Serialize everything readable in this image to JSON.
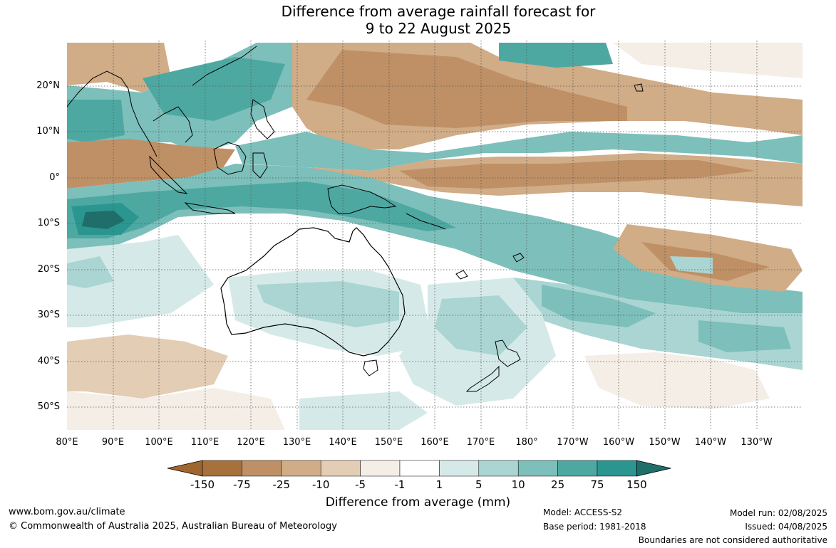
{
  "title_line1": "Difference from average rainfall forecast for",
  "title_line2": "9 to 22 August 2025",
  "lat_labels": [
    "20°N",
    "10°N",
    "0°",
    "10°S",
    "20°S",
    "30°S",
    "40°S",
    "50°S"
  ],
  "lon_labels": [
    "80°E",
    "90°E",
    "100°E",
    "110°E",
    "120°E",
    "130°E",
    "140°E",
    "150°E",
    "160°E",
    "170°E",
    "180°",
    "170°W",
    "160°W",
    "150°W",
    "140°W",
    "130°W"
  ],
  "colorbar": {
    "labels": [
      "-150",
      "-75",
      "-25",
      "-10",
      "-5",
      "-1",
      "1",
      "5",
      "10",
      "25",
      "75",
      "150"
    ],
    "colors": [
      "#a8703a",
      "#bf9065",
      "#d0ac87",
      "#e3cdb5",
      "#f4eee7",
      "#ffffff",
      "#d5eae8",
      "#aad5d2",
      "#7dbfba",
      "#4ea8a2",
      "#2b9690",
      "#1f6e6a"
    ],
    "title": "Difference from average (mm)"
  },
  "footer": {
    "url": "www.bom.gov.au/climate",
    "copyright": "© Commonwealth of Australia 2025, Australian Bureau of Meteorology",
    "model": "Model: ACCESS-S2",
    "base_period": "Base period: 1981-2018",
    "model_run": "Model run: 02/08/2025",
    "issued": "Issued: 04/08/2025",
    "disclaimer": "Boundaries are not considered authoritative"
  }
}
